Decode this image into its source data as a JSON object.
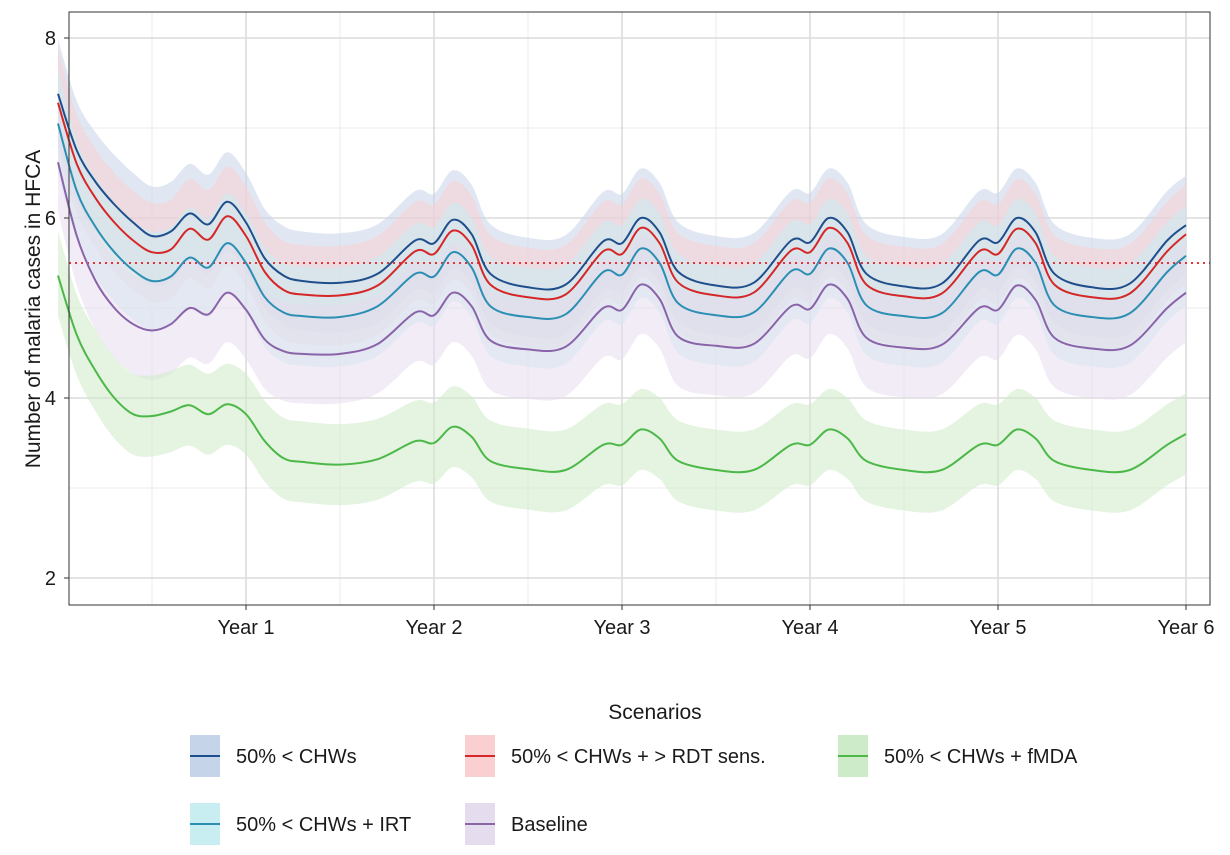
{
  "chart_data": {
    "type": "line",
    "title": "",
    "xlabel": "",
    "ylabel": "Number of malaria cases in HFCA",
    "x_ticks": [
      1,
      2,
      3,
      4,
      5,
      6
    ],
    "x_tick_labels": [
      "Year 1",
      "Year 2",
      "Year 3",
      "Year 4",
      "Year 5",
      "Year 6"
    ],
    "y_ticks": [
      2,
      4,
      6,
      8
    ],
    "y_tick_labels": [
      "2",
      "4",
      "6",
      "8"
    ],
    "xlim": [
      -0.28,
      6.1
    ],
    "ylim": [
      1.76,
      8.3
    ],
    "grid": true,
    "reference_line": {
      "y": 5.5,
      "color": "#e41a1c",
      "style": "dotted"
    },
    "legend": {
      "title": "Scenarios",
      "position": "bottom",
      "entries": [
        {
          "label": "50% < CHWs",
          "color": "#1f4e8c",
          "fill": "#c6d4ea"
        },
        {
          "label": "50% < CHWs + > RDT sens.",
          "color": "#d62728",
          "fill": "#f9cfd1"
        },
        {
          "label": "50% < CHWs + fMDA",
          "color": "#4cb848",
          "fill": "#cdebc8"
        },
        {
          "label": "50% < CHWs + IRT",
          "color": "#2b8fb3",
          "fill": "#c9eef2"
        },
        {
          "label": "Baseline",
          "color": "#8a63a8",
          "fill": "#e5dcee"
        }
      ]
    },
    "series": [
      {
        "name": "50% < CHWs",
        "color": "#1f4e8c",
        "fill": "#c6d4ea",
        "x": [
          0,
          0.1,
          0.2,
          0.3,
          0.4,
          0.5,
          0.6,
          0.7,
          0.8,
          0.9,
          1.0,
          1.1,
          1.2,
          1.3,
          1.5,
          1.7,
          1.9,
          2.0,
          2.1,
          2.2,
          2.3,
          2.5,
          2.7,
          2.9,
          3.0,
          3.1,
          3.2,
          3.3,
          3.5,
          3.7,
          3.9,
          4.0,
          4.1,
          4.2,
          4.3,
          4.5,
          4.7,
          4.9,
          5.0,
          5.1,
          5.2,
          5.3,
          5.5,
          5.7,
          5.9,
          6.0
        ],
        "y": [
          7.38,
          6.75,
          6.4,
          6.15,
          5.95,
          5.8,
          5.85,
          6.05,
          5.93,
          6.18,
          5.95,
          5.55,
          5.36,
          5.3,
          5.28,
          5.38,
          5.75,
          5.72,
          5.98,
          5.82,
          5.38,
          5.23,
          5.26,
          5.74,
          5.72,
          6.0,
          5.84,
          5.4,
          5.25,
          5.28,
          5.75,
          5.73,
          6.0,
          5.84,
          5.38,
          5.24,
          5.27,
          5.75,
          5.73,
          6.0,
          5.84,
          5.38,
          5.23,
          5.27,
          5.75,
          5.92
        ],
        "ci_half_width": 0.55
      },
      {
        "name": "50% < CHWs + > RDT sens.",
        "color": "#d62728",
        "fill": "#f9cfd1",
        "x": [
          0,
          0.1,
          0.2,
          0.3,
          0.4,
          0.5,
          0.6,
          0.7,
          0.8,
          0.9,
          1.0,
          1.1,
          1.2,
          1.3,
          1.5,
          1.7,
          1.9,
          2.0,
          2.1,
          2.2,
          2.3,
          2.5,
          2.7,
          2.9,
          3.0,
          3.1,
          3.2,
          3.3,
          3.5,
          3.7,
          3.9,
          4.0,
          4.1,
          4.2,
          4.3,
          4.5,
          4.7,
          4.9,
          5.0,
          5.1,
          5.2,
          5.3,
          5.5,
          5.7,
          5.9,
          6.0
        ],
        "y": [
          7.28,
          6.6,
          6.22,
          5.95,
          5.75,
          5.62,
          5.65,
          5.88,
          5.76,
          6.02,
          5.8,
          5.4,
          5.2,
          5.15,
          5.14,
          5.25,
          5.63,
          5.6,
          5.86,
          5.7,
          5.26,
          5.12,
          5.15,
          5.63,
          5.6,
          5.89,
          5.72,
          5.28,
          5.14,
          5.17,
          5.64,
          5.62,
          5.89,
          5.72,
          5.26,
          5.13,
          5.16,
          5.63,
          5.6,
          5.88,
          5.72,
          5.26,
          5.12,
          5.16,
          5.63,
          5.82
        ],
        "ci_half_width": 0.55
      },
      {
        "name": "50% < CHWs + IRT",
        "color": "#2b8fb3",
        "fill": "#c9eef2",
        "x": [
          0,
          0.1,
          0.2,
          0.3,
          0.4,
          0.5,
          0.6,
          0.7,
          0.8,
          0.9,
          1.0,
          1.1,
          1.2,
          1.3,
          1.5,
          1.7,
          1.9,
          2.0,
          2.1,
          2.2,
          2.3,
          2.5,
          2.7,
          2.9,
          3.0,
          3.1,
          3.2,
          3.3,
          3.5,
          3.7,
          3.9,
          4.0,
          4.1,
          4.2,
          4.3,
          4.5,
          4.7,
          4.9,
          5.0,
          5.1,
          5.2,
          5.3,
          5.5,
          5.7,
          5.9,
          6.0
        ],
        "y": [
          7.05,
          6.3,
          5.9,
          5.62,
          5.42,
          5.3,
          5.35,
          5.56,
          5.45,
          5.72,
          5.5,
          5.12,
          4.95,
          4.91,
          4.9,
          5.02,
          5.38,
          5.35,
          5.62,
          5.45,
          5.02,
          4.9,
          4.93,
          5.4,
          5.37,
          5.66,
          5.5,
          5.05,
          4.92,
          4.95,
          5.41,
          5.38,
          5.66,
          5.5,
          5.03,
          4.91,
          4.94,
          5.4,
          5.37,
          5.66,
          5.5,
          5.03,
          4.9,
          4.94,
          5.4,
          5.58
        ],
        "ci_half_width": 0.55
      },
      {
        "name": "Baseline",
        "color": "#8a63a8",
        "fill": "#e5dcee",
        "x": [
          0,
          0.1,
          0.2,
          0.3,
          0.4,
          0.5,
          0.6,
          0.7,
          0.8,
          0.9,
          1.0,
          1.1,
          1.2,
          1.3,
          1.5,
          1.7,
          1.9,
          2.0,
          2.1,
          2.2,
          2.3,
          2.5,
          2.7,
          2.9,
          3.0,
          3.1,
          3.2,
          3.3,
          3.5,
          3.7,
          3.9,
          4.0,
          4.1,
          4.2,
          4.3,
          4.5,
          4.7,
          4.9,
          5.0,
          5.1,
          5.2,
          5.3,
          5.5,
          5.7,
          5.9,
          6.0
        ],
        "y": [
          6.62,
          5.8,
          5.3,
          5.0,
          4.82,
          4.75,
          4.82,
          5.0,
          4.93,
          5.17,
          4.98,
          4.65,
          4.52,
          4.49,
          4.49,
          4.6,
          4.95,
          4.92,
          5.17,
          5.02,
          4.64,
          4.54,
          4.57,
          5.0,
          4.98,
          5.26,
          5.1,
          4.68,
          4.58,
          4.6,
          5.02,
          4.99,
          5.26,
          5.1,
          4.67,
          4.56,
          4.59,
          5.0,
          4.98,
          5.25,
          5.09,
          4.67,
          4.55,
          4.58,
          5.0,
          5.17
        ],
        "ci_half_width": 0.55
      },
      {
        "name": "50% < CHWs + fMDA",
        "color": "#4cb848",
        "fill": "#cdebc8",
        "x": [
          0,
          0.1,
          0.2,
          0.3,
          0.4,
          0.5,
          0.6,
          0.7,
          0.8,
          0.9,
          1.0,
          1.1,
          1.2,
          1.3,
          1.5,
          1.7,
          1.9,
          2.0,
          2.1,
          2.2,
          2.3,
          2.5,
          2.7,
          2.9,
          3.0,
          3.1,
          3.2,
          3.3,
          3.5,
          3.7,
          3.9,
          4.0,
          4.1,
          4.2,
          4.3,
          4.5,
          4.7,
          4.9,
          5.0,
          5.1,
          5.2,
          5.3,
          5.5,
          5.7,
          5.9,
          6.0
        ],
        "y": [
          5.36,
          4.7,
          4.3,
          4.0,
          3.82,
          3.8,
          3.85,
          3.92,
          3.82,
          3.93,
          3.82,
          3.52,
          3.33,
          3.29,
          3.26,
          3.32,
          3.52,
          3.5,
          3.68,
          3.57,
          3.3,
          3.21,
          3.2,
          3.48,
          3.48,
          3.65,
          3.55,
          3.3,
          3.2,
          3.2,
          3.48,
          3.48,
          3.65,
          3.55,
          3.3,
          3.2,
          3.2,
          3.48,
          3.48,
          3.65,
          3.55,
          3.3,
          3.2,
          3.2,
          3.48,
          3.6
        ],
        "ci_half_width": 0.45
      }
    ]
  }
}
